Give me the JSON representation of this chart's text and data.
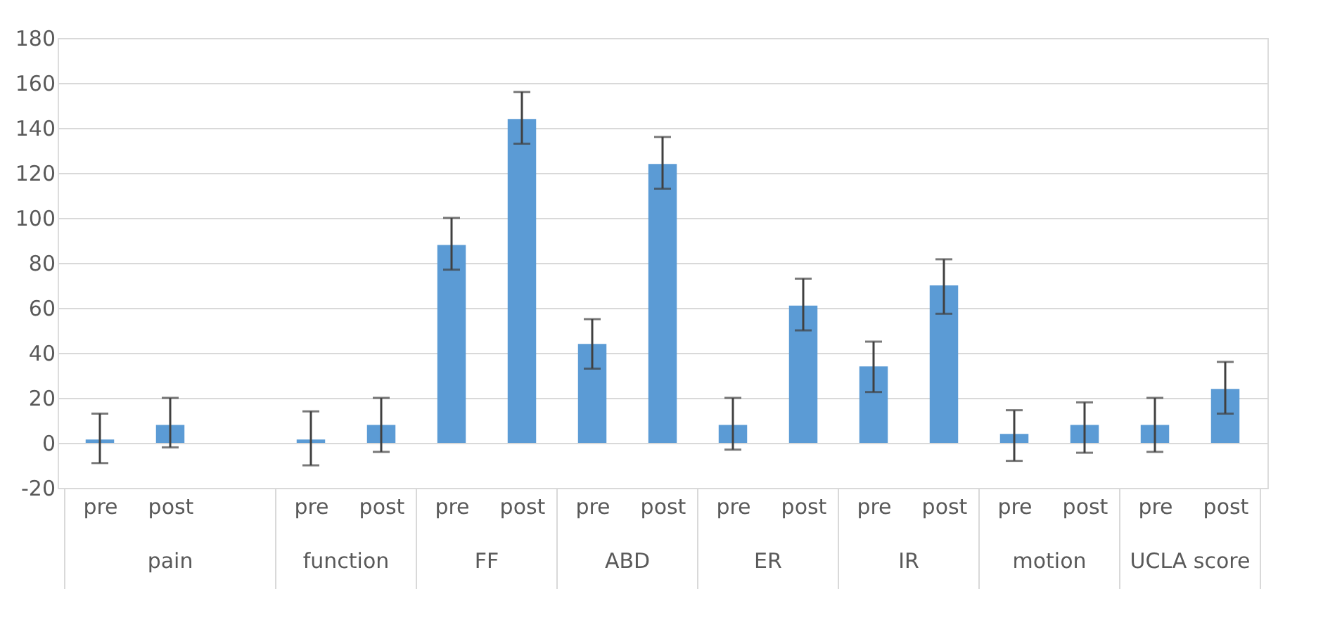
{
  "chart_data": {
    "type": "bar",
    "categories": [
      "pre",
      "post",
      null,
      "pre",
      "post",
      "pre",
      "post",
      "pre",
      "post",
      "pre",
      "post",
      "pre",
      "post",
      "pre",
      "post",
      "pre",
      "post"
    ],
    "values": [
      1.5,
      8,
      null,
      1.5,
      8,
      88,
      144,
      44,
      124,
      8,
      61,
      34,
      70,
      4,
      8,
      8,
      24
    ],
    "errors": [
      [
        -9,
        13
      ],
      [
        -2,
        20
      ],
      null,
      [
        -10,
        14
      ],
      [
        -4,
        20
      ],
      [
        77,
        100
      ],
      [
        133,
        156
      ],
      [
        33,
        55
      ],
      [
        113,
        136
      ],
      [
        -3,
        20
      ],
      [
        50,
        73
      ],
      [
        22.6,
        45
      ],
      [
        57.4,
        81.6
      ],
      [
        -8,
        14.5
      ],
      [
        -4.4,
        18
      ],
      [
        -4,
        20
      ],
      [
        13,
        36
      ]
    ],
    "color": "#5b9bd5",
    "annotations": [
      "pain",
      "function",
      "FF",
      "ABD",
      "ER",
      "IR",
      "motion",
      "UCLA score"
    ],
    "ylim": [
      -20,
      180
    ],
    "yticks": [
      -20,
      0,
      20,
      40,
      60,
      80,
      100,
      120,
      140,
      160,
      180
    ],
    "grid": "y"
  }
}
